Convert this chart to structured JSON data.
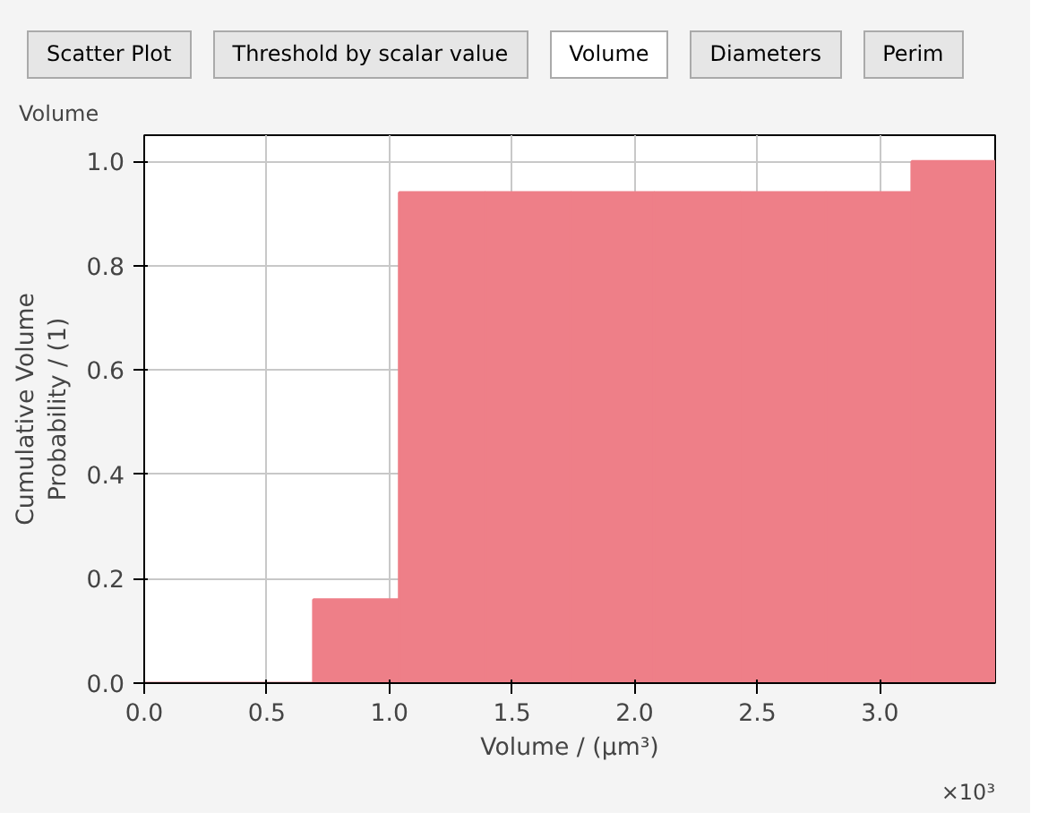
{
  "chart_data": {
    "type": "histogram",
    "title": "Volume",
    "xlabel": "Volume / (µm³)",
    "ylabel": "Cumulative Volume\nProbability / (1)",
    "bins": [
      0,
      0.35,
      0.69,
      1.04,
      1.39,
      1.74,
      2.08,
      2.43,
      2.78,
      3.13,
      3.47
    ],
    "values": [
      0,
      0,
      0.16,
      0.94,
      0.94,
      0.94,
      0.94,
      0.94,
      0.94,
      1.0
    ],
    "color": "#ee7f88",
    "xlim": [
      0,
      3.47
    ],
    "ylim": [
      0,
      1.05
    ],
    "xticks": [
      {
        "value": 0,
        "label": "0.0"
      },
      {
        "value": 0.5,
        "label": "0.5"
      },
      {
        "value": 1,
        "label": "1.0"
      },
      {
        "value": 1.5,
        "label": "1.5"
      },
      {
        "value": 2,
        "label": "2.0"
      },
      {
        "value": 2.5,
        "label": "2.5"
      },
      {
        "value": 3,
        "label": "3.0"
      }
    ],
    "yticks": [
      {
        "value": 0,
        "label": "0.0"
      },
      {
        "value": 0.2,
        "label": "0.2"
      },
      {
        "value": 0.4,
        "label": "0.4"
      },
      {
        "value": 0.6,
        "label": "0.6"
      },
      {
        "value": 0.8,
        "label": "0.8"
      },
      {
        "value": 1,
        "label": "1.0"
      }
    ],
    "grid": true,
    "annotations": [
      "×10³",
      "Scatter Plot",
      "Threshold by scalar value",
      "Volume",
      "Diameters",
      "Perim"
    ]
  }
}
